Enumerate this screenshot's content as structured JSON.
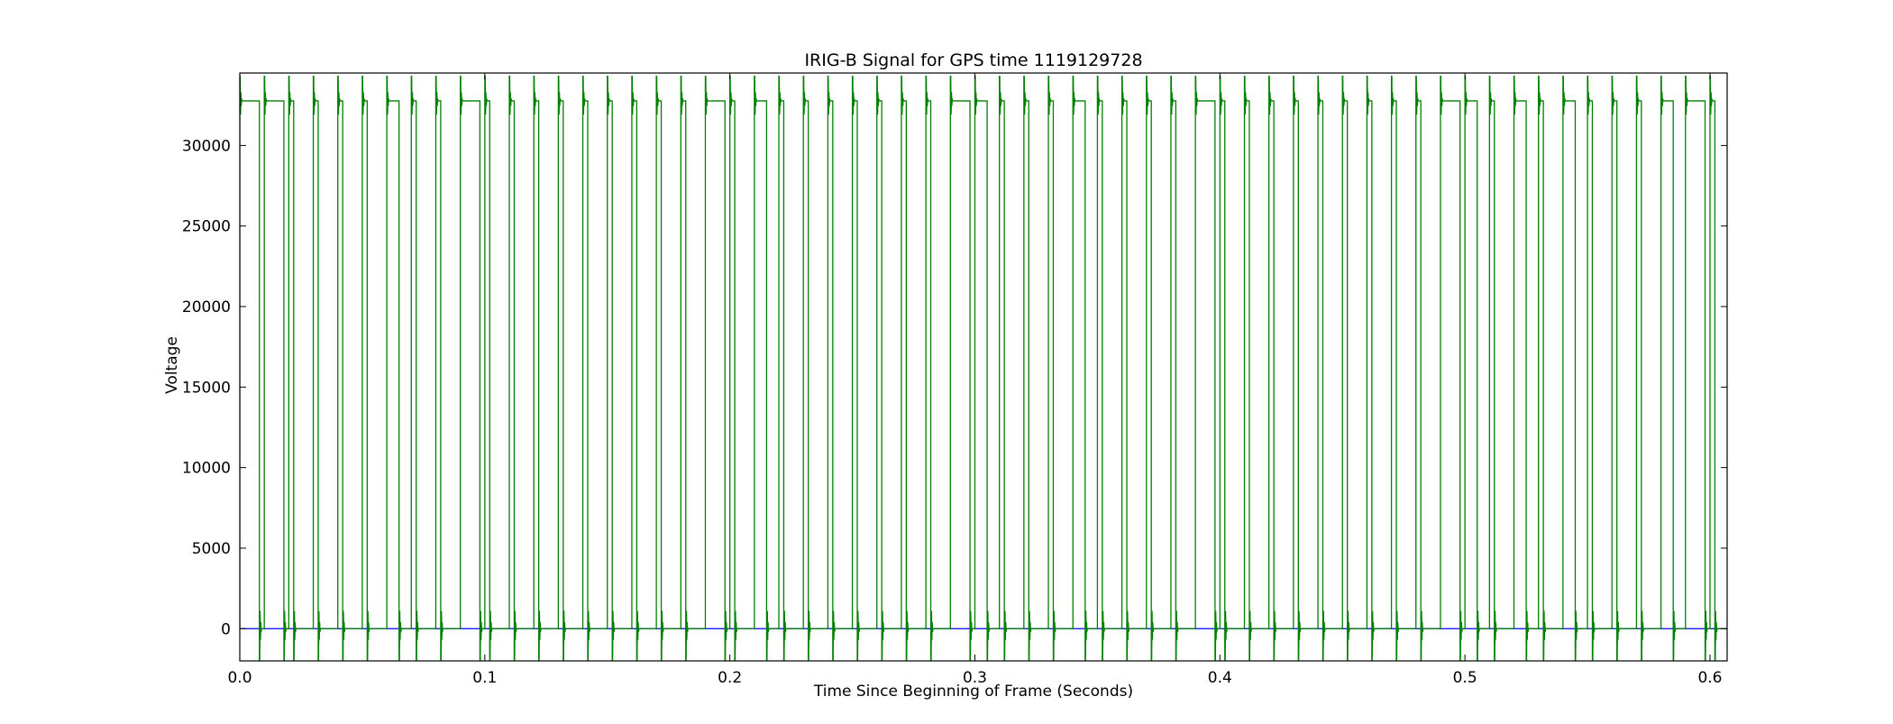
{
  "chart_data": {
    "type": "line",
    "title": "IRIG-B Signal for GPS time 1119129728",
    "xlabel": "Time Since Beginning of Frame (Seconds)",
    "ylabel": "Voltage",
    "xlim": [
      0.0,
      0.607
    ],
    "ylim": [
      -2000,
      34500
    ],
    "x_ticks": [
      0.0,
      0.1,
      0.2,
      0.3,
      0.4,
      0.5,
      0.6
    ],
    "x_tick_labels": [
      "0.0",
      "0.1",
      "0.2",
      "0.3",
      "0.4",
      "0.5",
      "0.6"
    ],
    "y_ticks": [
      0,
      5000,
      10000,
      15000,
      20000,
      25000,
      30000
    ],
    "y_tick_labels": [
      "0",
      "5000",
      "10000",
      "15000",
      "20000",
      "25000",
      "30000"
    ],
    "grid": false,
    "legend": "none",
    "series": [
      {
        "color": "#008000",
        "high_level": 32768,
        "low_level": 0,
        "overshoot_high": 34300,
        "undershoot_low": -2000,
        "bit_period": 0.01,
        "pulse_widths": [
          0.008,
          0.008,
          0.002,
          0.002,
          0.002,
          0.002,
          0.005,
          0.002,
          0.002,
          0.008,
          0.002,
          0.002,
          0.002,
          0.002,
          0.002,
          0.002,
          0.002,
          0.002,
          0.002,
          0.008,
          0.002,
          0.005,
          0.002,
          0.002,
          0.002,
          0.002,
          0.002,
          0.002,
          0.002,
          0.008,
          0.005,
          0.002,
          0.002,
          0.002,
          0.005,
          0.002,
          0.002,
          0.002,
          0.002,
          0.008,
          0.002,
          0.002,
          0.002,
          0.002,
          0.002,
          0.002,
          0.002,
          0.002,
          0.002,
          0.008,
          0.005,
          0.002,
          0.005,
          0.002,
          0.005,
          0.002,
          0.002,
          0.002,
          0.005,
          0.008,
          0.002
        ]
      },
      {
        "color": "#0000ff",
        "constant_value": 0
      }
    ]
  }
}
